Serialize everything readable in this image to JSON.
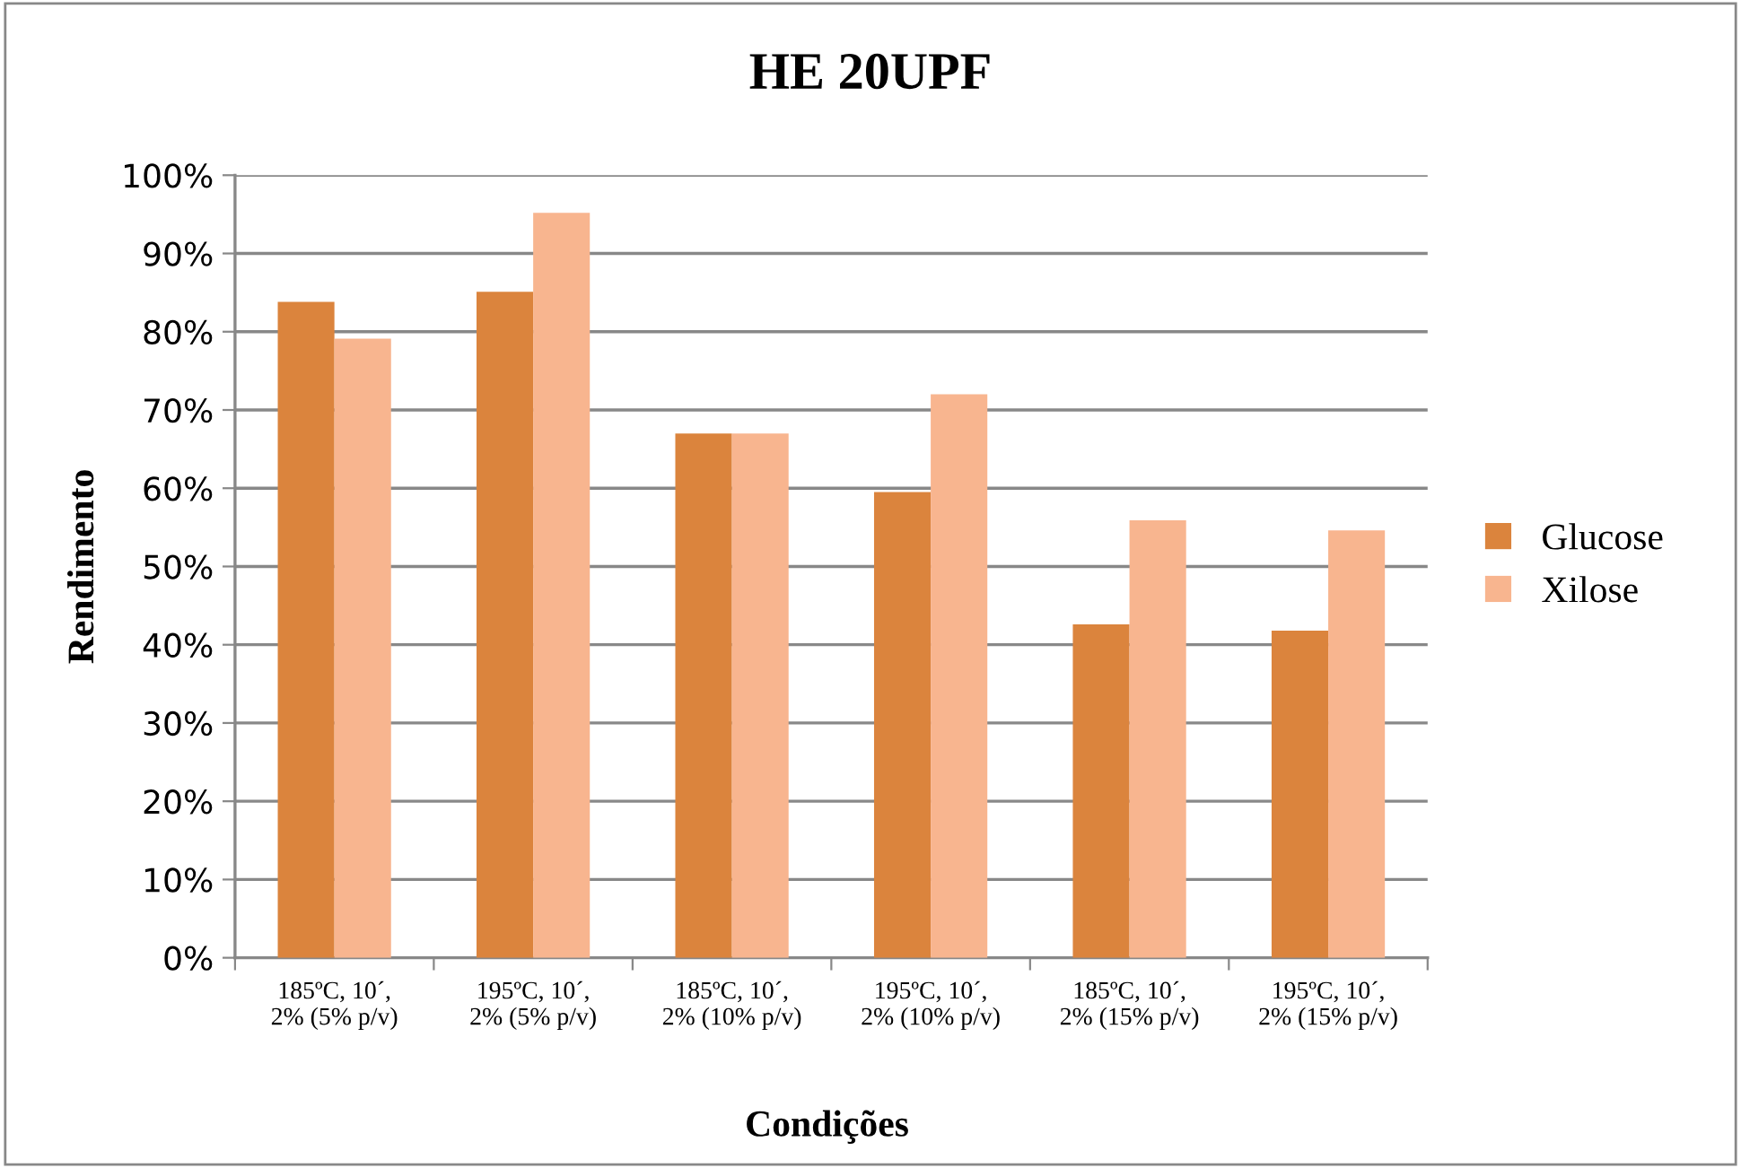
{
  "chart_data": {
    "type": "bar",
    "title": "HE 20UPF",
    "xlabel": "Condições",
    "ylabel": "Rendimento",
    "categories": [
      "185ºC, 10´,\n2% (5% p/v)",
      "195ºC, 10´,\n2% (5% p/v)",
      "185ºC, 10´,\n2% (10% p/v)",
      "195ºC, 10´,\n2% (10% p/v)",
      "185ºC, 10´,\n2% (15% p/v)",
      "195ºC, 10´,\n2% (15% p/v)"
    ],
    "series": [
      {
        "name": "Glucose",
        "color": "#db843d",
        "values": [
          83.8,
          85.1,
          67.0,
          59.5,
          42.6,
          41.8
        ]
      },
      {
        "name": "Xilose",
        "color": "#f8b58f",
        "values": [
          79.1,
          95.2,
          67.0,
          72.0,
          55.9,
          54.6
        ]
      }
    ],
    "ylim": [
      0,
      100
    ],
    "yticks": [
      {
        "value": 0,
        "label": "0%"
      },
      {
        "value": 10,
        "label": "10%"
      },
      {
        "value": 20,
        "label": "20%"
      },
      {
        "value": 30,
        "label": "30%"
      },
      {
        "value": 40,
        "label": "40%"
      },
      {
        "value": 50,
        "label": "50%"
      },
      {
        "value": 60,
        "label": "60%"
      },
      {
        "value": 70,
        "label": "70%"
      },
      {
        "value": 80,
        "label": "80%"
      },
      {
        "value": 90,
        "label": "90%"
      },
      {
        "value": 100,
        "label": "100%"
      }
    ],
    "grid": "y",
    "legend": "right"
  }
}
